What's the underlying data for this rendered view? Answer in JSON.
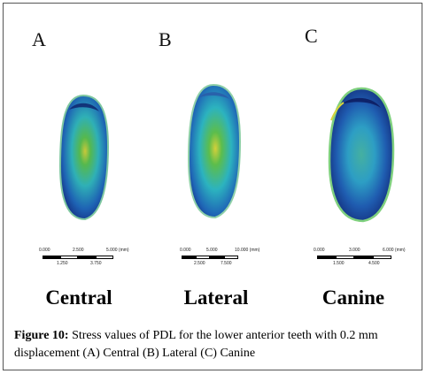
{
  "panels": [
    {
      "letter": "A",
      "name": "Central",
      "scale": {
        "top": [
          "0.000",
          "2.500",
          "5.000 (mm)"
        ],
        "bottom": [
          "1.250",
          "3.750"
        ]
      }
    },
    {
      "letter": "B",
      "name": "Lateral",
      "scale": {
        "top": [
          "0.000",
          "5.000",
          "10.000 (mm)"
        ],
        "bottom": [
          "2.500",
          "7.500"
        ]
      }
    },
    {
      "letter": "C",
      "name": "Canine",
      "scale": {
        "top": [
          "0.000",
          "3.000",
          "6.000 (mm)"
        ],
        "bottom": [
          "1.500",
          "4.500"
        ]
      }
    }
  ],
  "caption": {
    "label": "Figure 10:",
    "text": " Stress values of PDL for the lower anterior teeth with 0.2 mm displacement (A) Central (B) Lateral (C) Canine"
  },
  "colors": {
    "deep_blue": "#10247a",
    "blue": "#1e63b4",
    "cyan": "#2bb3c0",
    "green": "#4fbf4a",
    "yellow": "#d7d23c"
  }
}
